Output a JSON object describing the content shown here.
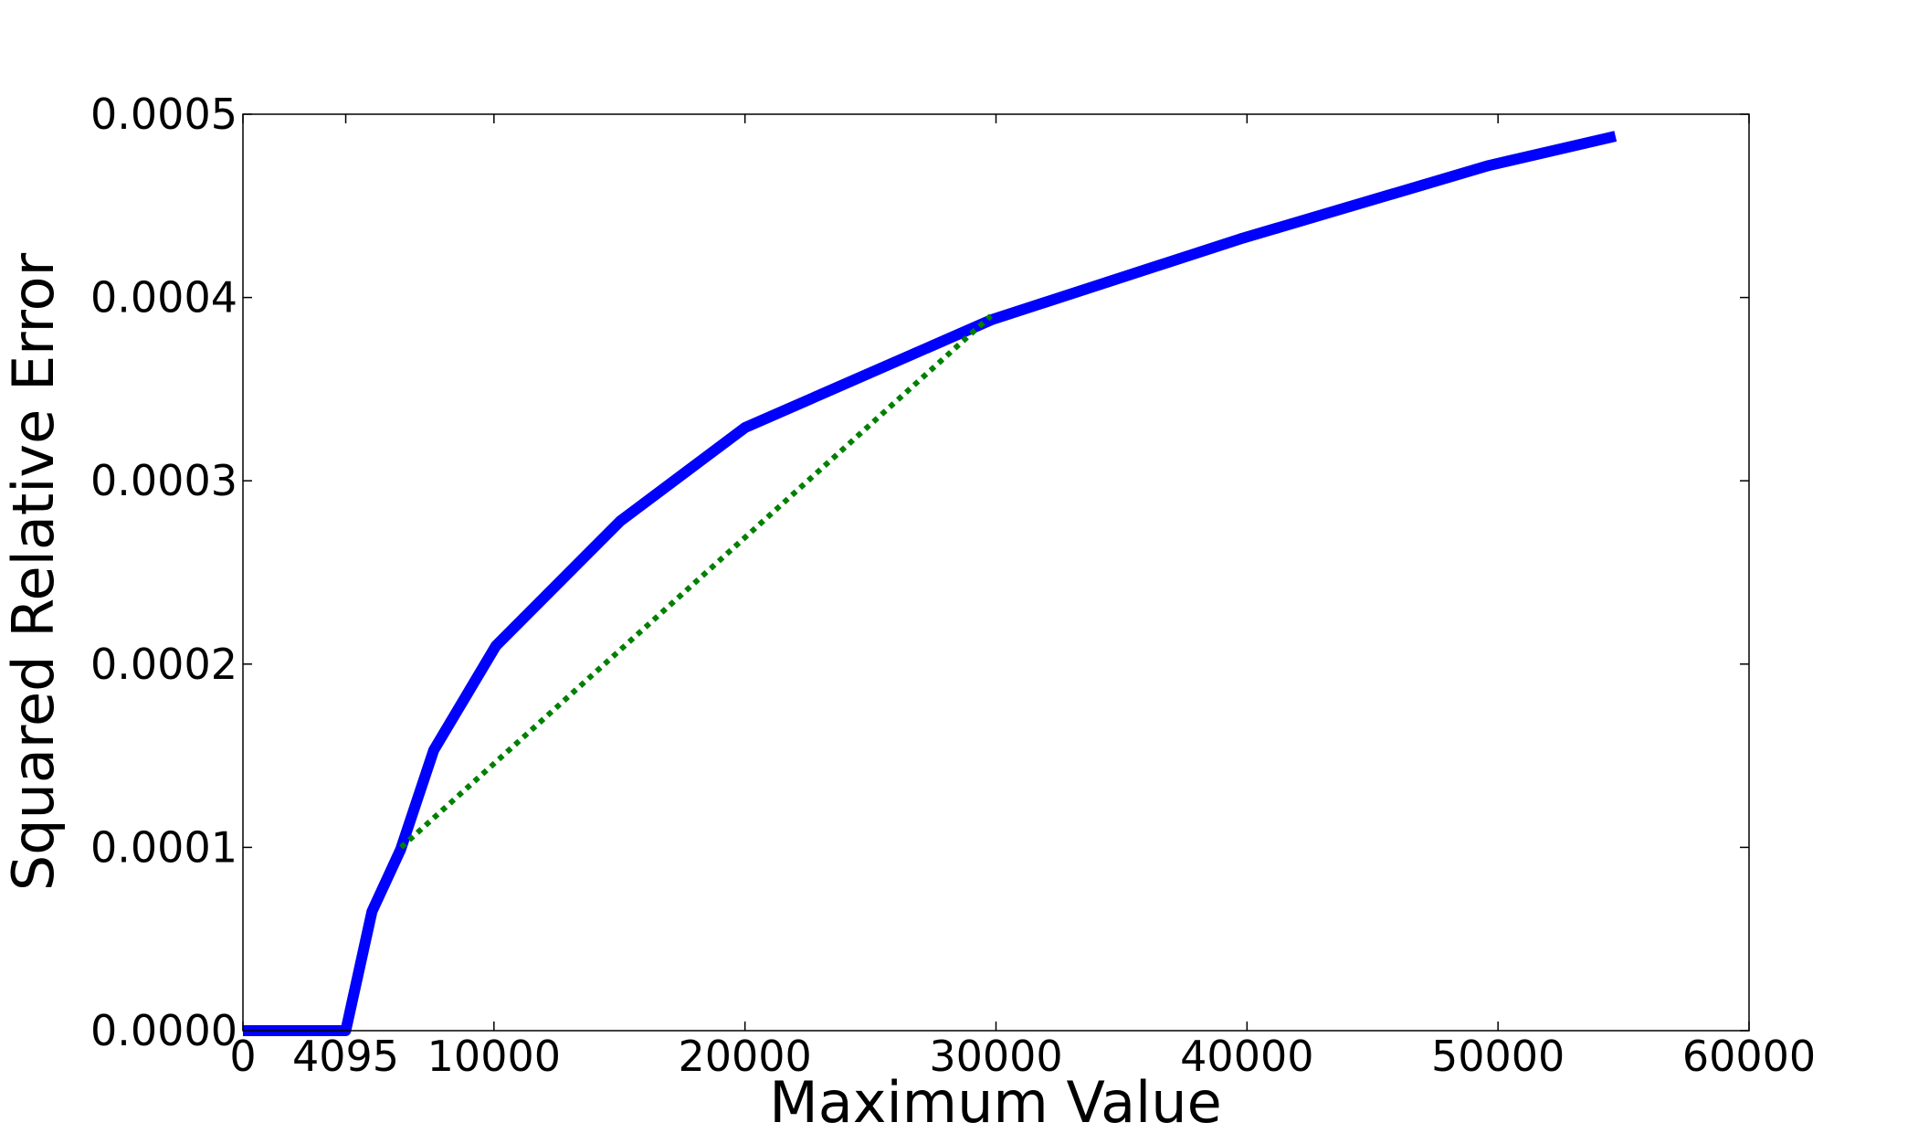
{
  "chart_data": {
    "type": "line",
    "xlabel": "Maximum Value",
    "ylabel": "Squared Relative Error",
    "xlim": [
      0,
      60000
    ],
    "ylim": [
      0,
      0.0005
    ],
    "xticks": [
      0,
      4095,
      10000,
      20000,
      30000,
      40000,
      50000,
      60000
    ],
    "yticks": [
      {
        "value": 0,
        "label": "0.0000"
      },
      0.0001,
      0.0002,
      0.0003,
      0.0004,
      0.0005
    ],
    "grid": false,
    "series": [
      {
        "color": "#0000ff",
        "style": "solid",
        "x": [
          0,
          4095,
          5140,
          6280,
          7600,
          10080,
          15030,
          20000,
          29850,
          39740,
          49630,
          54680
        ],
        "values": [
          0,
          0,
          6.5e-05,
          9.88e-05,
          0.000153,
          0.00021,
          0.000278,
          0.000329,
          0.000388,
          0.000432,
          0.000472,
          0.000488
        ]
      },
      {
        "color": "#008000",
        "style": "dotted",
        "x": [
          6300,
          29800
        ],
        "values": [
          0.0001,
          0.00039
        ]
      }
    ]
  }
}
